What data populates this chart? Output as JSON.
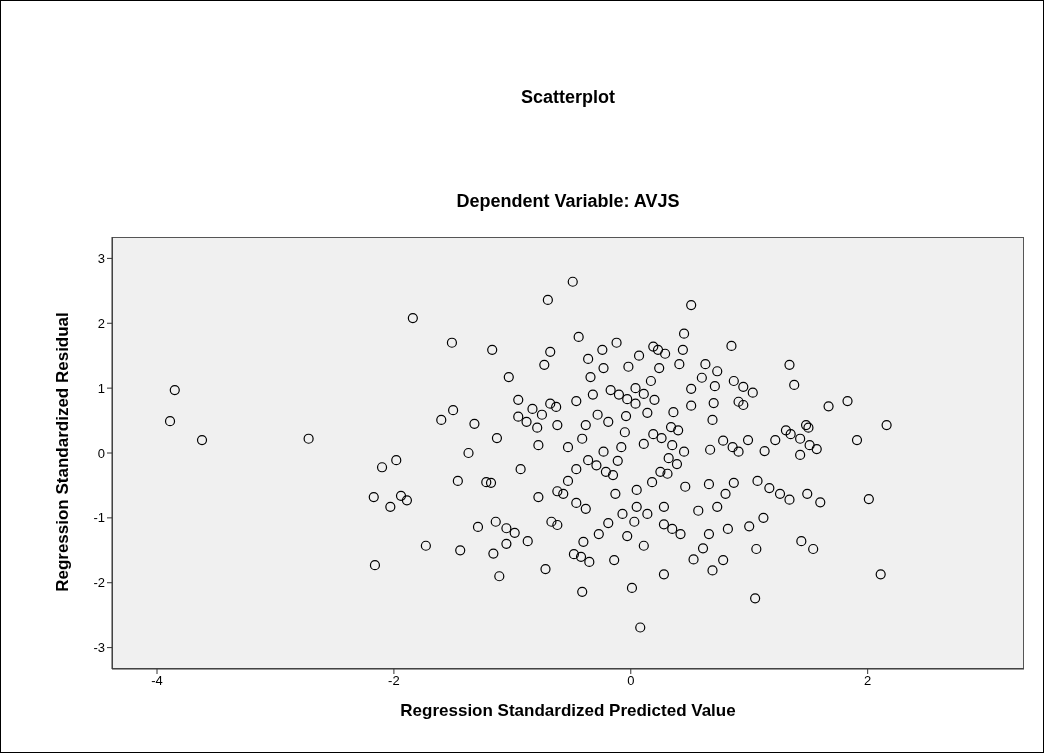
{
  "chart_data": {
    "type": "scatter",
    "title": "Scatterplot",
    "subtitle": "Dependent Variable: AVJS",
    "xlabel": "Regression Standardized Predicted Value",
    "ylabel": "Regression Standardized Residual",
    "xlim": [
      -4.38,
      3.32
    ],
    "ylim": [
      -3.33,
      3.33
    ],
    "xticks": [
      -4,
      -2,
      0,
      2
    ],
    "yticks": [
      -3,
      -2,
      -1,
      0,
      1,
      2,
      3
    ],
    "grid": false,
    "marker": "circle",
    "series": [
      {
        "color": "#000000",
        "x": [
          -3.89,
          -3.85,
          -3.62,
          -2.72,
          -1.84,
          -1.51,
          -1.17,
          -1.6,
          -1.5,
          -1.32,
          -1.13,
          -1.37,
          -1.98,
          -2.1,
          -2.17,
          -2.03,
          -1.94,
          -1.89,
          -1.73,
          -2.16,
          -1.46,
          -1.22,
          -1.44,
          -1.16,
          -1.29,
          -1.14,
          -1.11,
          -0.49,
          -0.7,
          0.51,
          -0.44,
          -0.12,
          -0.24,
          -0.36,
          -0.68,
          -0.73,
          -1.03,
          0.45,
          0.44,
          0.19,
          0.23,
          0.29,
          0.07,
          -0.02,
          -0.23,
          -0.34,
          0.24,
          0.41,
          0.63,
          0.73,
          0.85,
          0.6,
          0.71,
          0.87,
          0.95,
          1.03,
          0.51,
          0.17,
          0.04,
          0.11,
          0.2,
          -0.17,
          -0.1,
          -0.03,
          0.04,
          0.14,
          -0.32,
          -0.46,
          -0.68,
          -0.63,
          -0.95,
          -0.83,
          -0.75,
          -0.95,
          -0.88,
          -0.79,
          -0.62,
          -0.38,
          -0.28,
          -0.19,
          -0.04,
          -0.05,
          0.36,
          0.34,
          0.4,
          0.51,
          0.7,
          0.69,
          0.91,
          0.95,
          0.99,
          -0.78,
          -0.53,
          -0.41,
          -0.23,
          -0.08,
          0.11,
          0.19,
          0.26,
          0.35,
          0.45,
          0.67,
          0.78,
          0.86,
          0.91,
          -0.93,
          -1.18,
          -0.46,
          -0.36,
          -0.29,
          -0.21,
          -0.15,
          -0.11,
          -0.53,
          -0.62,
          -0.57,
          -0.78,
          -0.46,
          -0.38,
          -0.13,
          0.05,
          0.18,
          0.25,
          0.31,
          0.32,
          0.39,
          0.46,
          0.66,
          0.87,
          1.07,
          0.8,
          0.73,
          0.57,
          0.28,
          0.14,
          0.05,
          -0.07,
          0.03,
          -0.19,
          -0.27,
          -0.03,
          0.11,
          0.28,
          0.35,
          0.42,
          0.66,
          0.82,
          1.0,
          0.61,
          0.53,
          0.78,
          0.69,
          0.28,
          0.01,
          0.08,
          -0.41,
          -0.14,
          -0.48,
          -0.42,
          -0.35,
          -0.4,
          -0.67,
          -0.62,
          -0.72,
          -1.05,
          -0.98,
          -0.87,
          -1.05,
          1.05,
          1.06,
          1.34,
          1.38,
          1.83,
          1.67,
          2.16,
          1.91,
          1.48,
          1.5,
          1.31,
          1.35,
          1.43,
          1.22,
          1.51,
          1.57,
          1.13,
          1.43,
          1.17,
          1.26,
          1.34,
          1.49,
          1.6,
          2.01,
          1.12,
          1.44,
          1.54,
          2.11
        ],
        "values": [
          0.49,
          0.97,
          0.2,
          0.22,
          2.08,
          1.7,
          1.59,
          0.51,
          0.66,
          0.45,
          0.23,
          0.0,
          -0.11,
          -0.22,
          -0.68,
          -0.83,
          -0.66,
          -0.73,
          -1.43,
          -1.73,
          -0.43,
          -0.45,
          -1.5,
          -1.55,
          -1.14,
          -1.06,
          -1.9,
          2.64,
          2.36,
          2.28,
          1.79,
          1.7,
          1.59,
          1.45,
          1.56,
          1.36,
          1.17,
          1.84,
          1.59,
          1.64,
          1.59,
          1.53,
          1.5,
          1.33,
          1.31,
          1.17,
          1.31,
          1.37,
          1.37,
          1.26,
          1.65,
          1.16,
          1.03,
          1.11,
          1.02,
          0.93,
          0.99,
          1.11,
          1.0,
          0.91,
          0.82,
          0.97,
          0.9,
          0.83,
          0.76,
          0.62,
          0.9,
          0.8,
          0.76,
          0.71,
          0.82,
          0.68,
          0.59,
          0.56,
          0.48,
          0.39,
          0.43,
          0.43,
          0.59,
          0.48,
          0.57,
          0.32,
          0.63,
          0.4,
          0.35,
          0.73,
          0.77,
          0.51,
          0.79,
          0.74,
          0.2,
          0.12,
          0.09,
          0.22,
          0.02,
          0.09,
          0.14,
          0.29,
          0.23,
          0.12,
          0.02,
          0.05,
          0.19,
          0.09,
          0.02,
          -0.25,
          -0.46,
          -0.25,
          -0.11,
          -0.19,
          -0.29,
          -0.34,
          -0.12,
          -0.43,
          -0.59,
          -0.63,
          -0.68,
          -0.77,
          -0.86,
          -0.63,
          -0.57,
          -0.45,
          -0.29,
          -0.32,
          -0.08,
          -0.17,
          -0.52,
          -0.48,
          -0.46,
          -0.43,
          -0.63,
          -0.83,
          -0.89,
          -0.83,
          -0.94,
          -0.83,
          -0.94,
          -1.06,
          -1.08,
          -1.25,
          -1.28,
          -1.43,
          -1.1,
          -1.17,
          -1.25,
          -1.25,
          -1.17,
          -1.13,
          -1.47,
          -1.64,
          -1.65,
          -1.81,
          -1.87,
          -2.08,
          -2.69,
          -2.14,
          -1.65,
          -1.56,
          -1.6,
          -1.68,
          -1.37,
          -1.06,
          -1.11,
          -1.79,
          -1.16,
          -1.23,
          -1.36,
          -1.4,
          -2.24,
          -1.48,
          1.36,
          1.05,
          0.8,
          0.72,
          0.43,
          0.2,
          0.43,
          0.39,
          0.35,
          0.29,
          0.22,
          0.2,
          0.12,
          0.06,
          0.03,
          -0.03,
          -0.54,
          -0.63,
          -0.72,
          -0.63,
          -0.76,
          -0.71,
          -1.0,
          -1.36,
          -1.48,
          -1.87
        ]
      }
    ]
  }
}
